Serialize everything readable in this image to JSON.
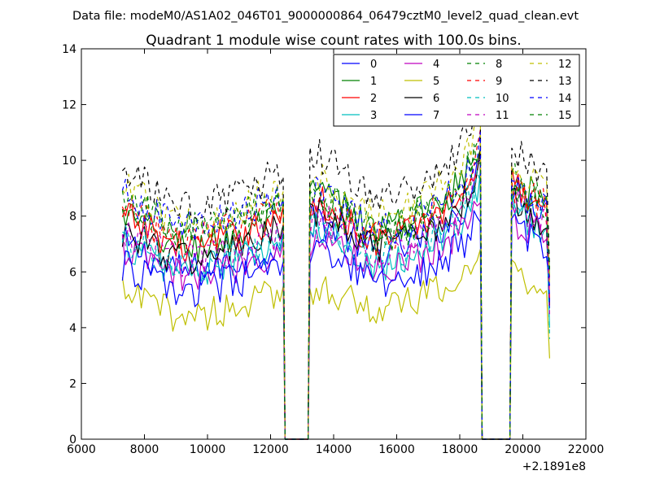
{
  "figure": {
    "suptitle": "Data file: modeM0/AS1A02_046T01_9000000864_06479cztM0_level2_quad_clean.evt"
  },
  "chart_data": {
    "type": "line",
    "title": "Quadrant 1 module wise count rates with 100.0s bins.",
    "xlabel": "",
    "ylabel": "",
    "x_offset_label": "+2.1891e8",
    "xlim": [
      6000,
      22000
    ],
    "ylim": [
      0,
      14
    ],
    "xticks": [
      6000,
      8000,
      10000,
      12000,
      14000,
      16000,
      18000,
      20000,
      22000
    ],
    "yticks": [
      0,
      2,
      4,
      6,
      8,
      10,
      12,
      14
    ],
    "xtick_labels": [
      "6000",
      "8000",
      "10000",
      "12000",
      "14000",
      "16000",
      "18000",
      "20000",
      "22000"
    ],
    "ytick_labels": [
      "0",
      "2",
      "4",
      "6",
      "8",
      "10",
      "12",
      "14"
    ],
    "grid": false,
    "legend_position": "top-right",
    "segments": [
      {
        "start": 7300,
        "end": 12400,
        "profile": [
          [
            7300,
            1.0
          ],
          [
            8000,
            0.95
          ],
          [
            9000,
            0.86
          ],
          [
            10000,
            0.87
          ],
          [
            11000,
            0.92
          ],
          [
            12000,
            0.98
          ],
          [
            12400,
            0.98
          ]
        ]
      },
      {
        "start": 13250,
        "end": 18650,
        "profile": [
          [
            13250,
            1.0
          ],
          [
            13500,
            1.03
          ],
          [
            14500,
            0.94
          ],
          [
            15300,
            0.86
          ],
          [
            16000,
            0.88
          ],
          [
            17000,
            0.95
          ],
          [
            18000,
            1.05
          ],
          [
            18500,
            1.2
          ],
          [
            18650,
            1.25
          ]
        ]
      },
      {
        "start": 19650,
        "end": 20900,
        "profile": [
          [
            19650,
            1.0
          ],
          [
            20000,
            0.98
          ],
          [
            20500,
            0.93
          ],
          [
            20900,
            0.9
          ]
        ]
      }
    ],
    "gaps": [
      [
        12450,
        13200
      ],
      [
        18700,
        19600
      ]
    ],
    "end_values": [
      4.7,
      5.8,
      4.9,
      4.0,
      5.7,
      2.9,
      4.8,
      5.5,
      6.1,
      5.0,
      3.6,
      4.4,
      5.5,
      6.1,
      4.9,
      6.0
    ],
    "series": [
      {
        "name": "0",
        "color": "#0000ff",
        "dash": "solid",
        "levels": [
          7.0,
          7.7,
          9.0
        ]
      },
      {
        "name": "1",
        "color": "#008000",
        "dash": "solid",
        "levels": [
          8.0,
          8.7,
          9.2
        ]
      },
      {
        "name": "2",
        "color": "#ff0000",
        "dash": "solid",
        "levels": [
          8.0,
          8.3,
          9.1
        ]
      },
      {
        "name": "3",
        "color": "#00bfbf",
        "dash": "solid",
        "levels": [
          7.0,
          7.3,
          8.2
        ]
      },
      {
        "name": "4",
        "color": "#bf00bf",
        "dash": "solid",
        "levels": [
          6.8,
          7.1,
          7.9
        ]
      },
      {
        "name": "5",
        "color": "#bfbf00",
        "dash": "solid",
        "levels": [
          5.2,
          5.4,
          6.0
        ]
      },
      {
        "name": "6",
        "color": "#000000",
        "dash": "solid",
        "levels": [
          7.5,
          7.9,
          8.6
        ]
      },
      {
        "name": "7",
        "color": "#0000ff",
        "dash": "solid",
        "levels": [
          6.2,
          6.5,
          7.6
        ]
      },
      {
        "name": "8",
        "color": "#008000",
        "dash": "dashed",
        "levels": [
          8.6,
          8.6,
          9.3
        ]
      },
      {
        "name": "9",
        "color": "#ff0000",
        "dash": "dashed",
        "levels": [
          8.3,
          8.4,
          9.1
        ]
      },
      {
        "name": "10",
        "color": "#00bfbf",
        "dash": "dashed",
        "levels": [
          7.3,
          7.6,
          8.6
        ]
      },
      {
        "name": "11",
        "color": "#bf00bf",
        "dash": "dashed",
        "levels": [
          7.5,
          7.8,
          8.5
        ]
      },
      {
        "name": "12",
        "color": "#bfbf00",
        "dash": "dashed",
        "levels": [
          9.0,
          9.2,
          9.8
        ]
      },
      {
        "name": "13",
        "color": "#000000",
        "dash": "dashed",
        "levels": [
          9.6,
          9.9,
          10.5
        ]
      },
      {
        "name": "14",
        "color": "#0000ff",
        "dash": "dashed",
        "levels": [
          8.8,
          8.6,
          9.4
        ]
      },
      {
        "name": "15",
        "color": "#008000",
        "dash": "dashed",
        "levels": [
          8.7,
          8.4,
          9.1
        ]
      }
    ]
  }
}
